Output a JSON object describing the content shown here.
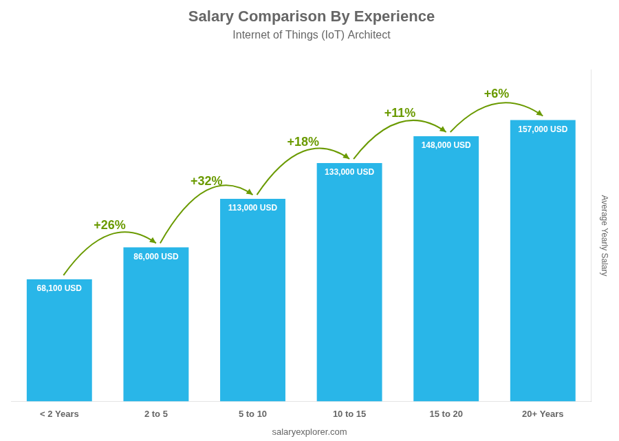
{
  "chart_data": {
    "type": "bar",
    "title": "Salary Comparison By Experience",
    "subtitle": "Internet of Things (IoT) Architect",
    "ylabel": "Average Yearly Salary",
    "footer": "salaryexplorer.com",
    "categories": [
      "< 2 Years",
      "2 to 5",
      "5 to 10",
      "10 to 15",
      "15 to 20",
      "20+ Years"
    ],
    "values": [
      68100,
      86000,
      113000,
      133000,
      148000,
      157000
    ],
    "value_labels": [
      "68,100 USD",
      "86,000 USD",
      "113,000 USD",
      "133,000 USD",
      "148,000 USD",
      "157,000 USD"
    ],
    "data_labels": true,
    "annotations": [
      "+26%",
      "+32%",
      "+18%",
      "+11%",
      "+6%"
    ],
    "color": "#29b6e8",
    "ylim": [
      0,
      185000
    ],
    "grid": false,
    "tick_labels": "x"
  }
}
